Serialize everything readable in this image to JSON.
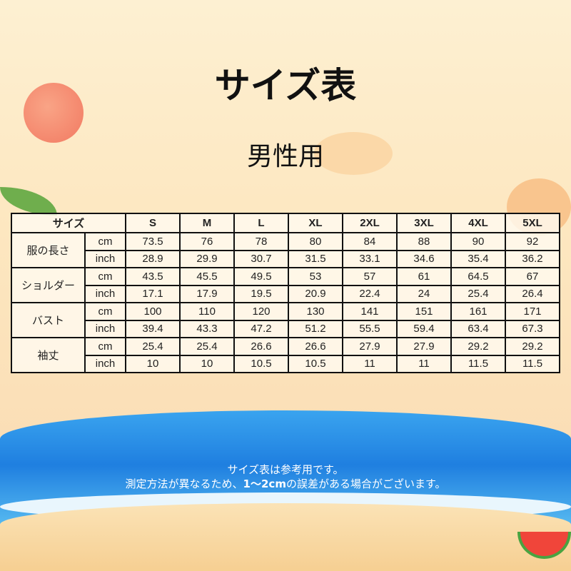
{
  "title": "サイズ表",
  "subtitle": "男性用",
  "table": {
    "corner_label": "サイズ",
    "sizes": [
      "S",
      "M",
      "L",
      "XL",
      "2XL",
      "3XL",
      "4XL",
      "5XL"
    ],
    "measurements": [
      {
        "label": "服の長さ",
        "rows": [
          {
            "unit": "cm",
            "values": [
              "73.5",
              "76",
              "78",
              "80",
              "84",
              "88",
              "90",
              "92"
            ]
          },
          {
            "unit": "inch",
            "values": [
              "28.9",
              "29.9",
              "30.7",
              "31.5",
              "33.1",
              "34.6",
              "35.4",
              "36.2"
            ]
          }
        ]
      },
      {
        "label": "ショルダー",
        "rows": [
          {
            "unit": "cm",
            "values": [
              "43.5",
              "45.5",
              "49.5",
              "53",
              "57",
              "61",
              "64.5",
              "67"
            ]
          },
          {
            "unit": "inch",
            "values": [
              "17.1",
              "17.9",
              "19.5",
              "20.9",
              "22.4",
              "24",
              "25.4",
              "26.4"
            ]
          }
        ]
      },
      {
        "label": "バスト",
        "rows": [
          {
            "unit": "cm",
            "values": [
              "100",
              "110",
              "120",
              "130",
              "141",
              "151",
              "161",
              "171"
            ]
          },
          {
            "unit": "inch",
            "values": [
              "39.4",
              "43.3",
              "47.2",
              "51.2",
              "55.5",
              "59.4",
              "63.4",
              "67.3"
            ]
          }
        ]
      },
      {
        "label": "袖丈",
        "rows": [
          {
            "unit": "cm",
            "values": [
              "25.4",
              "25.4",
              "26.6",
              "26.6",
              "27.9",
              "27.9",
              "29.2",
              "29.2"
            ]
          },
          {
            "unit": "inch",
            "values": [
              "10",
              "10",
              "10.5",
              "10.5",
              "11",
              "11",
              "11.5",
              "11.5"
            ]
          }
        ]
      }
    ]
  },
  "note": {
    "line1": "サイズ表は参考用です。",
    "line2_prefix": "測定方法が異なるため、",
    "line2_bold": "1～2cm",
    "line2_suffix": "の誤差がある場合がございます。"
  }
}
